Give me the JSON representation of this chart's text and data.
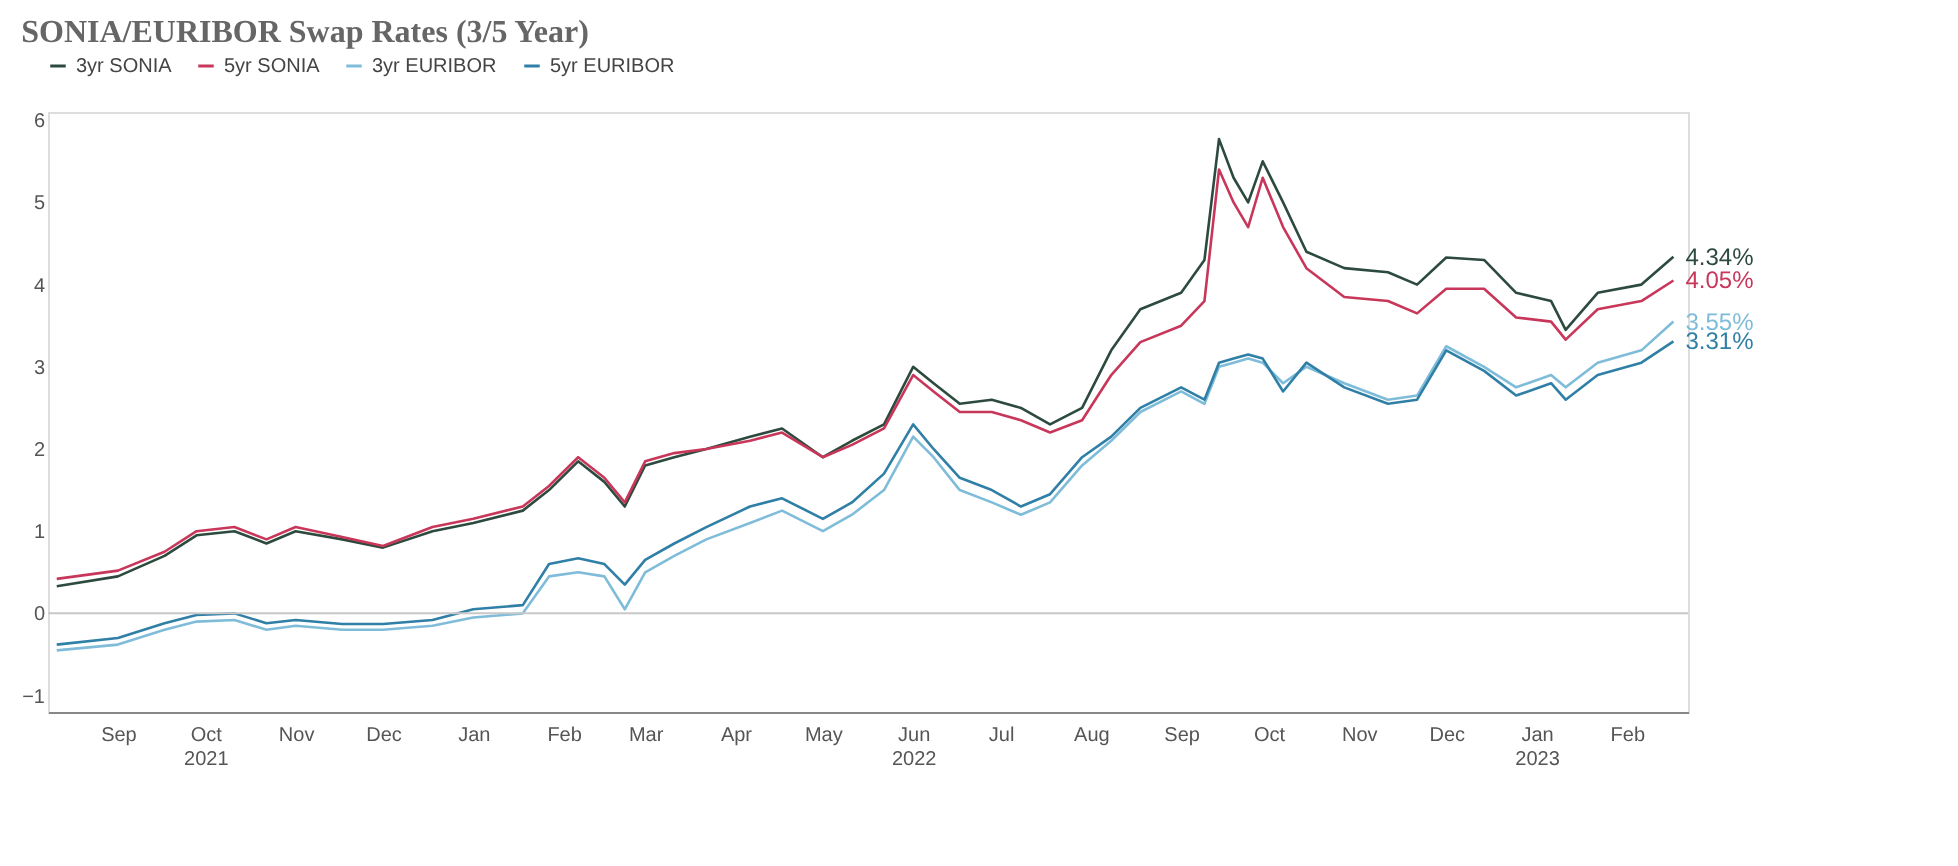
{
  "chart_data": {
    "type": "line",
    "title": "SONIA/EURIBOR Swap Rates (3/5 Year)",
    "x": [
      "2021-08-25",
      "2021-09-15",
      "2021-10-01",
      "2021-10-12",
      "2021-10-25",
      "2021-11-05",
      "2021-11-15",
      "2021-12-01",
      "2021-12-15",
      "2022-01-01",
      "2022-01-15",
      "2022-02-01",
      "2022-02-10",
      "2022-02-20",
      "2022-03-01",
      "2022-03-08",
      "2022-03-15",
      "2022-03-25",
      "2022-04-05",
      "2022-04-20",
      "2022-05-01",
      "2022-05-15",
      "2022-05-25",
      "2022-06-05",
      "2022-06-15",
      "2022-06-22",
      "2022-07-01",
      "2022-07-12",
      "2022-07-22",
      "2022-08-01",
      "2022-08-12",
      "2022-08-22",
      "2022-09-01",
      "2022-09-15",
      "2022-09-23",
      "2022-09-28",
      "2022-10-03",
      "2022-10-08",
      "2022-10-13",
      "2022-10-20",
      "2022-10-28",
      "2022-11-10",
      "2022-11-25",
      "2022-12-05",
      "2022-12-15",
      "2022-12-28",
      "2023-01-08",
      "2023-01-20",
      "2023-01-25",
      "2023-02-05",
      "2023-02-20",
      "2023-03-03"
    ],
    "series": [
      {
        "name": "3yr SONIA",
        "color": "#2d4a3e",
        "values": [
          0.33,
          0.45,
          0.7,
          0.95,
          1.0,
          0.85,
          1.0,
          0.9,
          0.8,
          1.0,
          1.1,
          1.25,
          1.5,
          1.85,
          1.6,
          1.3,
          1.8,
          1.9,
          2.0,
          2.15,
          2.25,
          1.9,
          2.1,
          2.3,
          3.0,
          2.8,
          2.55,
          2.6,
          2.5,
          2.3,
          2.5,
          3.2,
          3.7,
          3.9,
          4.3,
          5.77,
          5.3,
          5.0,
          5.5,
          5.0,
          4.4,
          4.2,
          4.15,
          4.0,
          4.33,
          4.3,
          3.9,
          3.8,
          3.45,
          3.9,
          4.0,
          4.34
        ],
        "value_labels": [
          null,
          null,
          null,
          null,
          null,
          null,
          null,
          null,
          null,
          null,
          null,
          null,
          null,
          null,
          null,
          null,
          null,
          null,
          null,
          null,
          null,
          null,
          null,
          null,
          null,
          null,
          null,
          null,
          null,
          null,
          null,
          null,
          null,
          null,
          null,
          null,
          null,
          null,
          null,
          null,
          null,
          null,
          null,
          null,
          null,
          null,
          null,
          null,
          null,
          null,
          null,
          "4.34%"
        ]
      },
      {
        "name": "5yr SONIA",
        "color": "#c8375a",
        "values": [
          0.42,
          0.52,
          0.75,
          1.0,
          1.05,
          0.9,
          1.05,
          0.93,
          0.82,
          1.05,
          1.15,
          1.3,
          1.55,
          1.9,
          1.65,
          1.35,
          1.85,
          1.95,
          2.0,
          2.1,
          2.2,
          1.9,
          2.05,
          2.25,
          2.9,
          2.7,
          2.45,
          2.45,
          2.35,
          2.2,
          2.35,
          2.9,
          3.3,
          3.5,
          3.8,
          5.4,
          5.0,
          4.7,
          5.3,
          4.7,
          4.2,
          3.85,
          3.8,
          3.65,
          3.95,
          3.95,
          3.6,
          3.55,
          3.33,
          3.7,
          3.8,
          4.05
        ],
        "value_labels": [
          null,
          null,
          null,
          null,
          null,
          null,
          null,
          null,
          null,
          null,
          null,
          null,
          null,
          null,
          null,
          null,
          null,
          null,
          null,
          null,
          null,
          null,
          null,
          null,
          null,
          null,
          null,
          null,
          null,
          null,
          null,
          null,
          null,
          null,
          null,
          null,
          null,
          null,
          null,
          null,
          null,
          null,
          null,
          null,
          null,
          null,
          null,
          null,
          null,
          null,
          null,
          "4.05%"
        ]
      },
      {
        "name": "3yr EURIBOR",
        "color": "#7fbcd9",
        "values": [
          -0.45,
          -0.38,
          -0.2,
          -0.1,
          -0.08,
          -0.2,
          -0.15,
          -0.2,
          -0.2,
          -0.15,
          -0.05,
          0.0,
          0.45,
          0.5,
          0.45,
          0.05,
          0.5,
          0.7,
          0.9,
          1.1,
          1.25,
          1.0,
          1.2,
          1.5,
          2.15,
          1.9,
          1.5,
          1.35,
          1.2,
          1.35,
          1.8,
          2.1,
          2.45,
          2.7,
          2.55,
          3.0,
          3.05,
          3.1,
          3.05,
          2.8,
          3.0,
          2.8,
          2.6,
          2.65,
          3.25,
          3.0,
          2.75,
          2.9,
          2.75,
          3.05,
          3.2,
          3.55
        ],
        "value_labels": [
          null,
          null,
          null,
          null,
          null,
          null,
          null,
          null,
          null,
          null,
          null,
          null,
          null,
          null,
          null,
          null,
          null,
          null,
          null,
          null,
          null,
          null,
          null,
          null,
          null,
          null,
          null,
          null,
          null,
          null,
          null,
          null,
          null,
          null,
          null,
          null,
          null,
          null,
          null,
          null,
          null,
          null,
          null,
          null,
          null,
          null,
          null,
          null,
          null,
          null,
          null,
          "3.55%"
        ]
      },
      {
        "name": "5yr EURIBOR",
        "color": "#2f7fa6",
        "values": [
          -0.38,
          -0.3,
          -0.12,
          -0.02,
          0.0,
          -0.12,
          -0.08,
          -0.13,
          -0.13,
          -0.08,
          0.05,
          0.1,
          0.6,
          0.67,
          0.6,
          0.35,
          0.65,
          0.85,
          1.05,
          1.3,
          1.4,
          1.15,
          1.35,
          1.7,
          2.3,
          2.0,
          1.65,
          1.5,
          1.3,
          1.45,
          1.9,
          2.15,
          2.5,
          2.75,
          2.6,
          3.05,
          3.1,
          3.15,
          3.1,
          2.7,
          3.05,
          2.75,
          2.55,
          2.6,
          3.2,
          2.95,
          2.65,
          2.8,
          2.6,
          2.9,
          3.05,
          3.31
        ],
        "value_labels": [
          null,
          null,
          null,
          null,
          null,
          null,
          null,
          null,
          null,
          null,
          null,
          null,
          null,
          null,
          null,
          null,
          null,
          null,
          null,
          null,
          null,
          null,
          null,
          null,
          null,
          null,
          null,
          null,
          null,
          null,
          null,
          null,
          null,
          null,
          null,
          null,
          null,
          null,
          null,
          null,
          null,
          null,
          null,
          null,
          null,
          null,
          null,
          null,
          null,
          null,
          null,
          "3.31%"
        ]
      }
    ],
    "xlim": [
      "2021-08-22",
      "2023-03-08"
    ],
    "xticks": [
      {
        "value": "2021-09-15",
        "label": "Sep"
      },
      {
        "value": "2021-10-15",
        "label": "Oct\n2021"
      },
      {
        "value": "2021-11-15",
        "label": "Nov"
      },
      {
        "value": "2021-12-15",
        "label": "Dec"
      },
      {
        "value": "2022-01-15",
        "label": "Jan"
      },
      {
        "value": "2022-02-15",
        "label": "Feb"
      },
      {
        "value": "2022-03-15",
        "label": "Mar"
      },
      {
        "value": "2022-04-15",
        "label": "Apr"
      },
      {
        "value": "2022-05-15",
        "label": "May"
      },
      {
        "value": "2022-06-15",
        "label": "Jun\n2022"
      },
      {
        "value": "2022-07-15",
        "label": "Jul"
      },
      {
        "value": "2022-08-15",
        "label": "Aug"
      },
      {
        "value": "2022-09-15",
        "label": "Sep"
      },
      {
        "value": "2022-10-15",
        "label": "Oct"
      },
      {
        "value": "2022-11-15",
        "label": "Nov"
      },
      {
        "value": "2022-12-15",
        "label": "Dec"
      },
      {
        "value": "2023-01-15",
        "label": "Jan\n2023"
      },
      {
        "value": "2023-02-15",
        "label": "Feb"
      }
    ],
    "ylim": [
      -1.2,
      6.1
    ],
    "yticks": [
      -1,
      0,
      1,
      2,
      3,
      4,
      5,
      6
    ],
    "ref_lines": [
      {
        "axis": "y",
        "value": 0,
        "color": "#c8c8c8"
      }
    ],
    "grid": false,
    "legend": "top left",
    "line_style": "solid",
    "marker": "none"
  }
}
